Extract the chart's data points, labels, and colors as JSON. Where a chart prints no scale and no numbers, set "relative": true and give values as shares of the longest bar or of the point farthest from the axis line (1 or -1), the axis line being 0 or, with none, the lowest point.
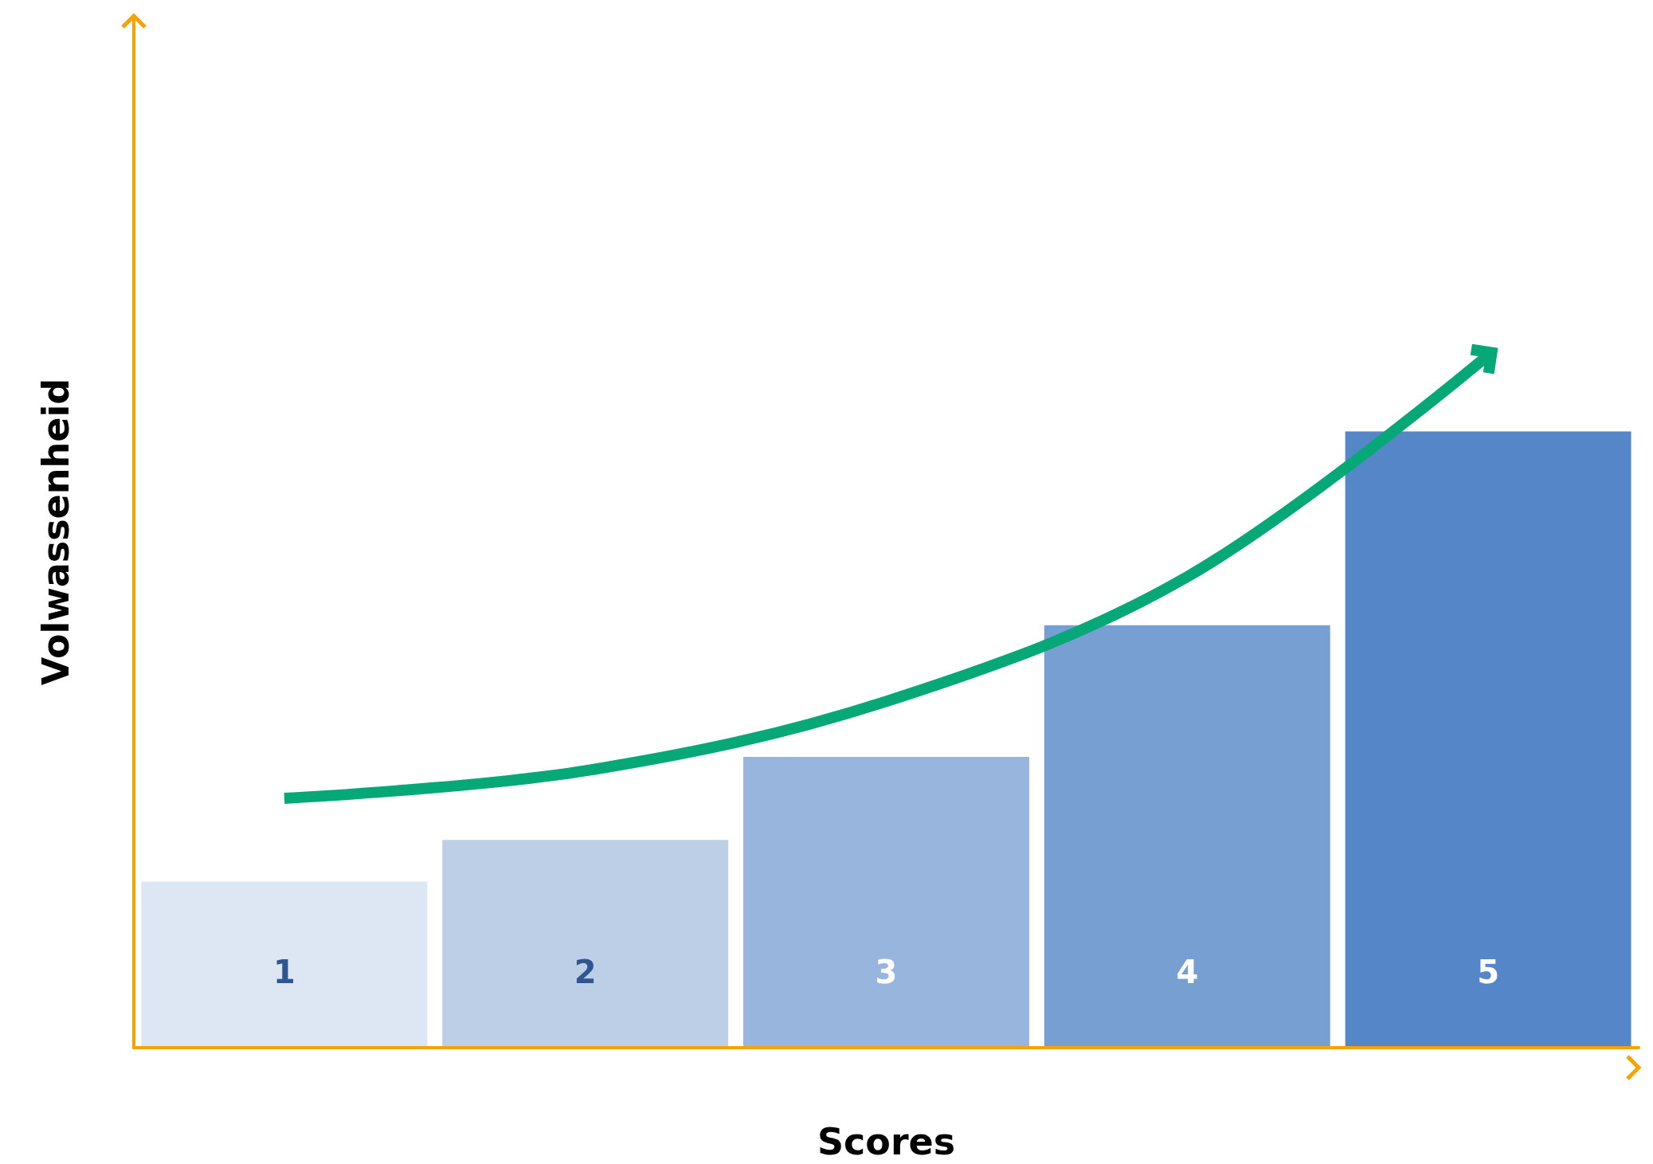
{
  "chart_data": {
    "type": "bar",
    "relative": true,
    "xlabel": "Scores",
    "ylabel": "Volwassenheid",
    "categories": [
      "1",
      "2",
      "3",
      "4",
      "5"
    ],
    "series": [
      {
        "colors": [
          "#dde6f3",
          "#bccfe7",
          "#98b6dd",
          "#789fd2",
          "#5587c8"
        ],
        "values": [
          0.24,
          0.3,
          0.42,
          0.61,
          0.89
        ]
      },
      {
        "type": "line",
        "color": "#06a877",
        "values": [
          0.36,
          0.4,
          0.5,
          0.68,
          1
        ]
      }
    ],
    "grid": false
  }
}
